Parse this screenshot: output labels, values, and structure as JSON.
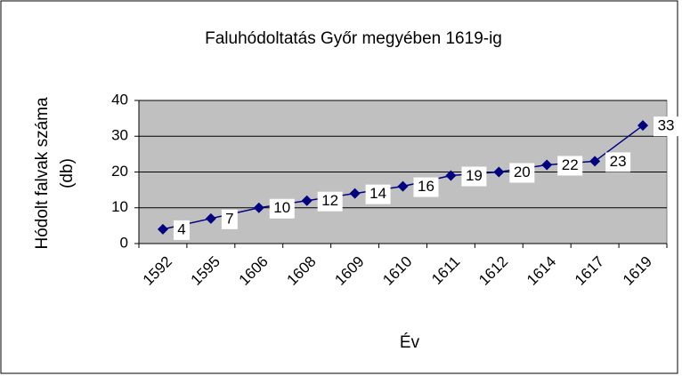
{
  "chart_data": {
    "type": "line",
    "title": "Faluhódoltatás Győr megyében 1619-ig",
    "x_label": "Év",
    "y_label": [
      "Hódolt falvak száma",
      "(db)"
    ],
    "categories": [
      "1592",
      "1595",
      "1606",
      "1608",
      "1609",
      "1610",
      "1611",
      "1612",
      "1614",
      "1617",
      "1619"
    ],
    "series": [
      {
        "color": "#000080",
        "values": [
          4,
          7,
          10,
          12,
          14,
          16,
          19,
          20,
          22,
          23,
          33
        ]
      }
    ],
    "ylim": [
      0,
      40
    ],
    "yticks": [
      0,
      10,
      20,
      30,
      40
    ],
    "grid": true
  }
}
